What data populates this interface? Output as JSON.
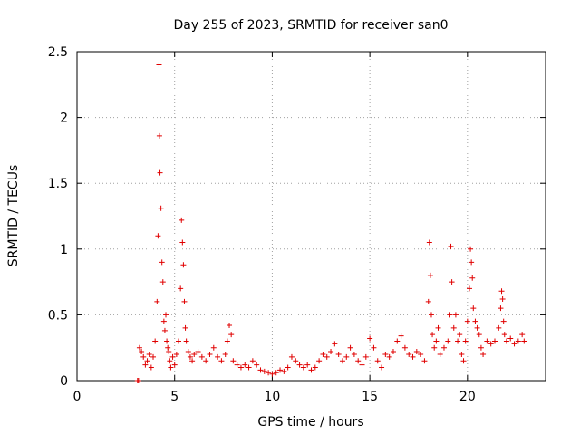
{
  "chart_data": {
    "type": "scatter",
    "title": "Day 255 of 2023, SRMTID for receiver san0",
    "xlabel": "GPS time / hours",
    "ylabel": "SRMTID / TECUs",
    "xlim": [
      0,
      24
    ],
    "ylim": [
      0,
      2.5
    ],
    "xticks": [
      0,
      5,
      10,
      15,
      20
    ],
    "xtick_labels": [
      "0",
      "5",
      "10",
      "15",
      "20"
    ],
    "yticks": [
      0,
      0.5,
      1,
      1.5,
      2,
      2.5
    ],
    "ytick_labels": [
      "0",
      "0.5",
      "1",
      "1.5",
      "2",
      "2.5"
    ],
    "grid": true,
    "marker": "plus",
    "color": "#e00000",
    "series": [
      {
        "name": "san0",
        "x": [
          3.1,
          3.15,
          3.2,
          3.3,
          3.4,
          3.5,
          3.6,
          3.7,
          3.8,
          3.9,
          4.0,
          4.1,
          4.15,
          4.2,
          4.22,
          4.25,
          4.3,
          4.35,
          4.4,
          4.45,
          4.5,
          4.55,
          4.6,
          4.65,
          4.7,
          4.75,
          4.8,
          4.9,
          5.0,
          5.1,
          5.2,
          5.3,
          5.35,
          5.4,
          5.45,
          5.5,
          5.55,
          5.6,
          5.7,
          5.8,
          5.9,
          6.0,
          6.2,
          6.4,
          6.6,
          6.8,
          7.0,
          7.2,
          7.4,
          7.6,
          7.7,
          7.8,
          7.9,
          8.0,
          8.2,
          8.4,
          8.6,
          8.8,
          9.0,
          9.2,
          9.4,
          9.6,
          9.8,
          10.0,
          10.2,
          10.4,
          10.6,
          10.8,
          11.0,
          11.2,
          11.4,
          11.6,
          11.8,
          12.0,
          12.2,
          12.4,
          12.6,
          12.8,
          13.0,
          13.2,
          13.4,
          13.6,
          13.8,
          14.0,
          14.2,
          14.4,
          14.6,
          14.8,
          15.0,
          15.2,
          15.4,
          15.6,
          15.8,
          16.0,
          16.2,
          16.4,
          16.6,
          16.8,
          17.0,
          17.2,
          17.4,
          17.6,
          17.8,
          18.0,
          18.05,
          18.1,
          18.15,
          18.2,
          18.3,
          18.4,
          18.5,
          18.6,
          18.8,
          19.0,
          19.1,
          19.15,
          19.2,
          19.3,
          19.4,
          19.5,
          19.6,
          19.7,
          19.8,
          19.9,
          20.0,
          20.1,
          20.15,
          20.2,
          20.25,
          20.3,
          20.4,
          20.5,
          20.6,
          20.7,
          20.8,
          21.0,
          21.2,
          21.4,
          21.6,
          21.7,
          21.75,
          21.8,
          21.85,
          21.9,
          22.0,
          22.2,
          22.4,
          22.6,
          22.8,
          22.9
        ],
        "y": [
          0.0,
          0.0,
          0.25,
          0.22,
          0.18,
          0.12,
          0.15,
          0.2,
          0.1,
          0.18,
          0.3,
          0.6,
          1.1,
          2.4,
          1.86,
          1.58,
          1.31,
          0.9,
          0.75,
          0.45,
          0.38,
          0.5,
          0.3,
          0.25,
          0.22,
          0.15,
          0.1,
          0.18,
          0.12,
          0.2,
          0.3,
          0.7,
          1.22,
          1.05,
          0.88,
          0.6,
          0.4,
          0.3,
          0.22,
          0.18,
          0.15,
          0.2,
          0.22,
          0.18,
          0.15,
          0.2,
          0.25,
          0.18,
          0.15,
          0.2,
          0.3,
          0.42,
          0.35,
          0.15,
          0.12,
          0.1,
          0.12,
          0.1,
          0.15,
          0.12,
          0.08,
          0.07,
          0.06,
          0.05,
          0.06,
          0.08,
          0.07,
          0.1,
          0.18,
          0.15,
          0.12,
          0.1,
          0.12,
          0.08,
          0.1,
          0.15,
          0.2,
          0.18,
          0.22,
          0.28,
          0.2,
          0.15,
          0.18,
          0.25,
          0.2,
          0.15,
          0.12,
          0.18,
          0.32,
          0.25,
          0.15,
          0.1,
          0.2,
          0.18,
          0.22,
          0.3,
          0.34,
          0.25,
          0.2,
          0.18,
          0.22,
          0.2,
          0.15,
          0.6,
          1.05,
          0.8,
          0.5,
          0.35,
          0.25,
          0.3,
          0.4,
          0.2,
          0.25,
          0.3,
          0.5,
          1.02,
          0.75,
          0.4,
          0.5,
          0.3,
          0.35,
          0.2,
          0.15,
          0.3,
          0.45,
          0.7,
          1.0,
          0.9,
          0.78,
          0.55,
          0.45,
          0.4,
          0.35,
          0.25,
          0.2,
          0.3,
          0.28,
          0.3,
          0.4,
          0.55,
          0.68,
          0.62,
          0.45,
          0.35,
          0.3,
          0.32,
          0.28,
          0.3,
          0.35,
          0.3
        ]
      }
    ]
  }
}
